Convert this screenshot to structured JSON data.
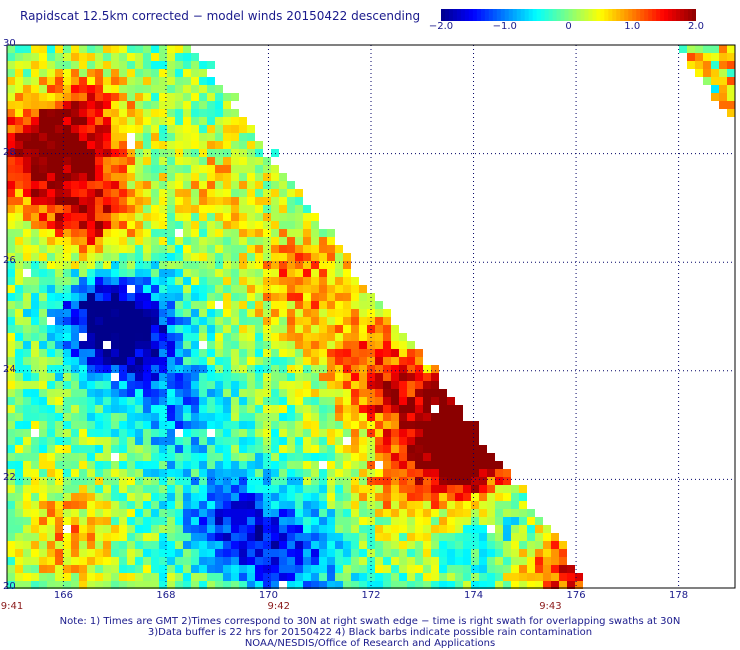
{
  "title": "Rapidscat 12.5km corrected − model winds 20150422 descending",
  "colorbar": {
    "ticks": [
      "−2.0",
      "−1.0",
      "0",
      "1.0",
      "2.0"
    ],
    "tick_values": [
      -2.0,
      -1.0,
      0,
      1.0,
      2.0
    ],
    "colors": [
      "#00008b",
      "#0000ff",
      "#0080ff",
      "#00ffff",
      "#80ff80",
      "#ffff00",
      "#ff8000",
      "#ff0000",
      "#8b0000"
    ]
  },
  "axes": {
    "lat_labels": [
      "30",
      "28",
      "26",
      "24",
      "22",
      "20"
    ],
    "lat_values": [
      30,
      28,
      26,
      24,
      22,
      20
    ],
    "lon_labels": [
      "166",
      "168",
      "170",
      "172",
      "174",
      "176",
      "178"
    ],
    "lon_values": [
      166,
      168,
      170,
      172,
      174,
      176,
      178
    ],
    "lon_range": [
      164.9,
      179.1
    ],
    "lat_range": [
      20,
      30
    ]
  },
  "times": [
    {
      "label": "9:41",
      "lon": 164.95
    },
    {
      "label": "9:42",
      "lon": 170.2
    },
    {
      "label": "9:43",
      "lon": 175.5
    }
  ],
  "notes": [
    "Note: 1) Times are GMT 2)Times correspond to 30N at right swath edge − time is right swath for overlapping swaths at 30N",
    "3)Data buffer is 22 hrs for 20150422 4) Black barbs indicate possible rain contamination",
    "NOAA/NESDIS/Office of Research and Applications"
  ],
  "chart_data": {
    "type": "heatmap",
    "title": "Rapidscat 12.5km corrected − model winds 20150422 descending",
    "value_range": [
      -2.0,
      2.0
    ],
    "xlim": [
      164.9,
      179.1
    ],
    "ylim": [
      20,
      30
    ],
    "swath_edge": [
      [
        168.5,
        30
      ],
      [
        176.3,
        20
      ]
    ],
    "corner_swath": [
      [
        177.9,
        30
      ],
      [
        179.1,
        30
      ],
      [
        179.1,
        28.5
      ]
    ],
    "anomalies": [
      {
        "lon": 165.5,
        "lat": 28.0,
        "value": 1.9
      },
      {
        "lon": 166.5,
        "lat": 28.6,
        "value": 1.3
      },
      {
        "lon": 166.5,
        "lat": 26.8,
        "value": 1.6
      },
      {
        "lon": 167.3,
        "lat": 24.7,
        "value": -1.9
      },
      {
        "lon": 166.6,
        "lat": 25.1,
        "value": -1.2
      },
      {
        "lon": 168.2,
        "lat": 23.2,
        "value": -0.9
      },
      {
        "lon": 169.3,
        "lat": 21.2,
        "value": -1.4
      },
      {
        "lon": 170.5,
        "lat": 20.6,
        "value": -1.2
      },
      {
        "lon": 169.0,
        "lat": 27.5,
        "value": 0.6
      },
      {
        "lon": 170.5,
        "lat": 25.8,
        "value": 1.0
      },
      {
        "lon": 172.2,
        "lat": 23.8,
        "value": 1.3
      },
      {
        "lon": 173.6,
        "lat": 23.0,
        "value": 2.0
      },
      {
        "lon": 174.0,
        "lat": 22.4,
        "value": 1.8
      },
      {
        "lon": 172.5,
        "lat": 22.0,
        "value": 0.8
      },
      {
        "lon": 175.8,
        "lat": 20.3,
        "value": 1.5
      },
      {
        "lon": 166.0,
        "lat": 21.0,
        "value": 0.8
      },
      {
        "lon": 171.5,
        "lat": 24.8,
        "value": 0.5
      },
      {
        "lon": 174.6,
        "lat": 21.2,
        "value": -0.6
      }
    ]
  }
}
